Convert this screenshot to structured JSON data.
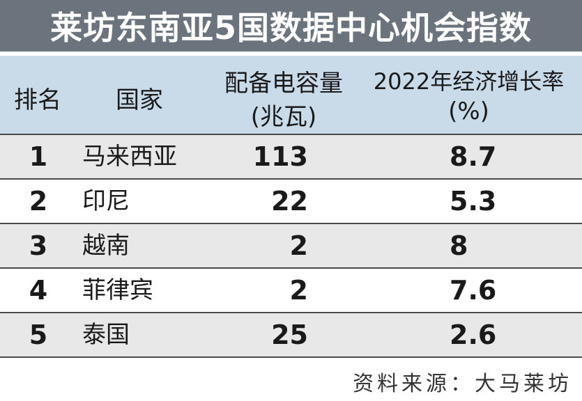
{
  "title": "莱坊东南亚5国数据中心机会指数",
  "headers": {
    "rank": "排名",
    "country": "国家",
    "capacity_line1": "配备电容量",
    "capacity_line2": "(兆瓦)",
    "growth_line1": "2022年经济增长率",
    "growth_line2": "(%)"
  },
  "rows": [
    {
      "rank": "1",
      "country": "马来西亚",
      "capacity": "113",
      "growth": "8.7"
    },
    {
      "rank": "2",
      "country": "印尼",
      "capacity": "22",
      "growth": "5.3"
    },
    {
      "rank": "3",
      "country": "越南",
      "capacity": "2",
      "growth": "8"
    },
    {
      "rank": "4",
      "country": "菲律宾",
      "capacity": "2",
      "growth": "7.6"
    },
    {
      "rank": "5",
      "country": "泰国",
      "capacity": "25",
      "growth": "2.6"
    }
  ],
  "source": "资料来源：大马莱坊",
  "colors": {
    "title_bg": "#6b747c",
    "header_bg": "#c9dbe9",
    "row_shade": "#e8e8e8"
  }
}
